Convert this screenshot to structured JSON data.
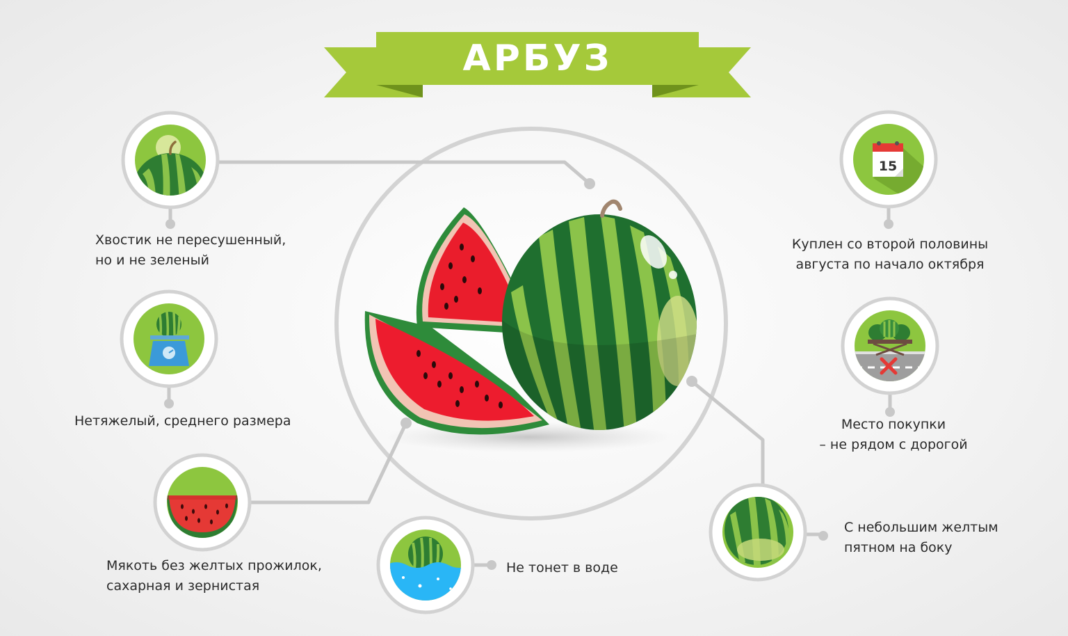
{
  "title": "АРБУЗ",
  "colors": {
    "banner": "#a5c93a",
    "banner_dark": "#7a9e22",
    "icon_bg": "#8dc63f",
    "connector": "#c6c6c6",
    "watermelon_dark": "#2e7d32",
    "watermelon_light": "#8bc34a",
    "flesh": "#ef1c36"
  },
  "tips": [
    {
      "id": "tail",
      "icon": "watermelon-tail-icon",
      "lines": [
        "Хвостик не пересушенный,",
        "но и не зеленый"
      ]
    },
    {
      "id": "weight",
      "icon": "scale-icon",
      "lines": [
        "Нетяжелый, среднего размера"
      ]
    },
    {
      "id": "flesh",
      "icon": "watermelon-slice-icon",
      "lines": [
        "Мякоть без желтых прожилок,",
        "сахарная и зернистая"
      ]
    },
    {
      "id": "water",
      "icon": "water-icon",
      "lines": [
        "Не тонет в воде"
      ]
    },
    {
      "id": "date",
      "icon": "calendar-icon",
      "calendar_day": "15",
      "lines": [
        "Куплен со второй половины",
        "августа по начало октября"
      ]
    },
    {
      "id": "place",
      "icon": "roadside-stall-icon",
      "lines": [
        "Место покупки",
        "– не рядом с дорогой"
      ]
    },
    {
      "id": "spot",
      "icon": "yellow-spot-icon",
      "lines": [
        "С небольшим желтым",
        "пятном на боку"
      ]
    }
  ]
}
